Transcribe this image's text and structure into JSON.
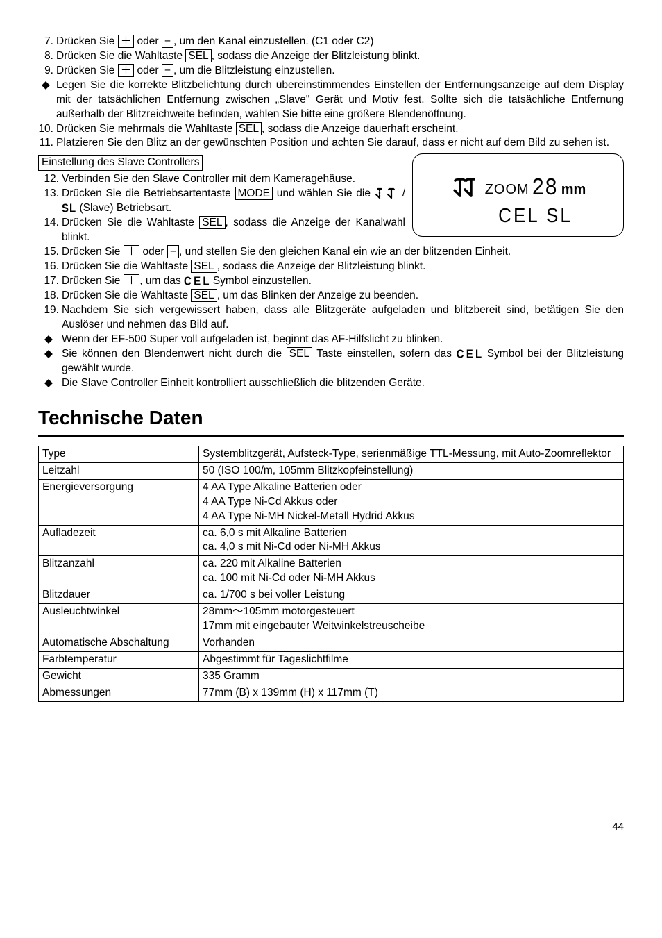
{
  "list_top": [
    {
      "n": "7.",
      "t": "Drücken Sie <span class='box-key'>＋</span> oder <span class='box-key'>−</span>, um den Kanal einzustellen. (C1 oder C2)"
    },
    {
      "n": "8.",
      "t": "Drücken Sie die Wahltaste <span class='box-key'>SEL</span>, sodass die Anzeige der Blitzleistung blinkt."
    },
    {
      "n": "9.",
      "t": "Drücken Sie <span class='box-key'>＋</span> oder <span class='box-key'>−</span>, um die Blitzleistung einzustellen."
    },
    {
      "n": "◆",
      "t": "Legen Sie die korrekte Blitzbelichtung durch übereinstimmendes Einstellen der Entfernungsanzeige auf dem Display mit der tatsächlichen Entfernung zwischen „Slave\" Gerät und Motiv fest. Sollte sich die tatsächliche Entfernung außerhalb der Blitzreichweite befinden, wählen Sie bitte eine größere Blendenöffnung."
    },
    {
      "n": "10.",
      "t": "Drücken Sie mehrmals die Wahltaste <span class='box-key'>SEL</span>, sodass die Anzeige dauerhaft erscheint."
    },
    {
      "n": "11.",
      "t": "Platzieren Sie den Blitz an der gewünschten Position und achten Sie darauf, dass er nicht auf dem Bild zu sehen ist."
    }
  ],
  "section_label": "Einstellung des Slave Controllers",
  "figure": {
    "zoom_label": "ZOOM",
    "zoom_value": "28",
    "zoom_unit": "mm",
    "line2": "CEL SL"
  },
  "list_bottom": [
    {
      "n": "12.",
      "t": "Verbinden Sie den Slave Controller mit dem Kameragehäuse."
    },
    {
      "n": "13.",
      "t": "Drücken Sie die Betriebsartentaste <span class='box-key'>MODE</span> und wählen Sie die <svg class='slave-icon' width='40' height='18' viewBox='0 0 40 18'><path d='M7 2 L7 15 M7 15 L2 10 M7 2 L4 2 L3 3 M7 2 L10 2 L11 3' stroke='#000' stroke-width='2.2' fill='none' stroke-dasharray='2.5,2' stroke-linecap='round'/><path d='M24 2 L24 15 M24 15 L19 10 M24 2 L21 2 L20 3 M24 2 L27 2 L28 3' stroke='#000' stroke-width='2.2' fill='none' stroke-linecap='round'/></svg>/ <span class='ctl-icon' style='font-size:15px;'>SL</span> (Slave) Betriebsart."
    },
    {
      "n": "14.",
      "t": "Drücken Sie die Wahltaste <span class='box-key'>SEL</span>, sodass die Anzeige der Kanalwahl blinkt."
    },
    {
      "n": "15.",
      "t": "Drücken Sie <span class='box-key'>＋</span> oder <span class='box-key'>−</span>, und stellen Sie den gleichen Kanal ein wie an der blitzenden Einheit."
    },
    {
      "n": "16.",
      "t": "Drücken Sie die Wahltaste <span class='box-key'>SEL</span>, sodass die Anzeige der Blitzleistung blinkt."
    },
    {
      "n": "17.",
      "t": "Drücken Sie <span class='box-key'>＋</span>, um das <span class='ctl-icon' style='font-size:15px;'>C&#8202;E&#8202;L</span> Symbol einzustellen."
    },
    {
      "n": "18.",
      "t": "Drücken Sie die Wahltaste <span class='box-key'>SEL</span>, um das Blinken der Anzeige zu beenden."
    },
    {
      "n": "19.",
      "t": "Nachdem Sie sich vergewissert haben, dass alle Blitzgeräte aufgeladen und blitzbereit sind, betätigen Sie den Auslöser und nehmen das Bild auf."
    },
    {
      "n": "◆",
      "t": "Wenn der EF-500 Super voll aufgeladen ist, beginnt das AF-Hilfslicht zu blinken."
    },
    {
      "n": "◆",
      "t": "Sie können den Blendenwert nicht durch die <span class='box-key'>SEL</span> Taste einstellen, sofern das <span class='ctl-icon' style='font-size:15px;'>C&#8202;E&#8202;L</span> Symbol bei der Blitzleistung gewählt wurde."
    },
    {
      "n": "◆",
      "t": "Die Slave Controller Einheit kontrolliert ausschließlich die blitzenden Geräte."
    }
  ],
  "heading": "Technische Daten",
  "table": [
    {
      "label": "Type",
      "value": "Systemblitzgerät, Aufsteck-Type, serienmäßige TTL-Messung, mit Auto-Zoomreflektor"
    },
    {
      "label": "Leitzahl",
      "value": "50 (ISO 100/m, 105mm Blitzkopfeinstellung)"
    },
    {
      "label": "Energieversorgung",
      "value": "4 AA Type Alkaline Batterien oder<br>4 AA Type Ni-Cd Akkus oder<br>4 AA Type Ni-MH Nickel-Metall Hydrid Akkus"
    },
    {
      "label": "Aufladezeit",
      "value": "ca. 6,0 s mit Alkaline Batterien<br>ca. 4,0 s mit Ni-Cd oder Ni-MH Akkus"
    },
    {
      "label": "Blitzanzahl",
      "value": "ca. 220 mit Alkaline Batterien<br>ca. 100 mit Ni-Cd oder Ni-MH Akkus"
    },
    {
      "label": "Blitzdauer",
      "value": "ca. 1/700 s bei voller Leistung"
    },
    {
      "label": "Ausleuchtwinkel",
      "value": "28mm～105mm motorgesteuert<br>17mm mit eingebauter Weitwinkelstreuscheibe"
    },
    {
      "label": "Automatische Abschaltung",
      "value": "Vorhanden"
    },
    {
      "label": "Farbtemperatur",
      "value": "Abgestimmt für Tageslichtfilme"
    },
    {
      "label": "Gewicht",
      "value": "335 Gramm"
    },
    {
      "label": "Abmessungen",
      "value": "77mm (B) x 139mm (H) x 117mm (T)"
    }
  ],
  "page_number": "44"
}
